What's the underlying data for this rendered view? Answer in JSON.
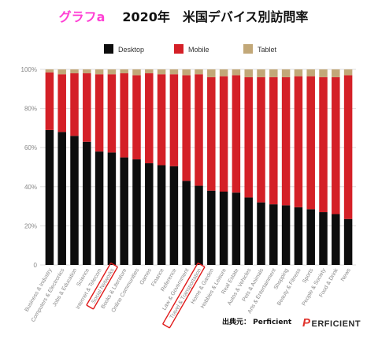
{
  "title": {
    "tag": "グラフa",
    "text": "2020年　米国デバイス別訪問率"
  },
  "source": "出典元： Perficient",
  "logo": {
    "mark": "P",
    "text": "ERFICIENT"
  },
  "colors": {
    "desktop": "#0d0d0d",
    "mobile": "#d42027",
    "tablet": "#c2a878",
    "highlight": "#e01919",
    "grid": "#dddddd",
    "axis_text": "#888888"
  },
  "chart_data": {
    "type": "bar",
    "stacked": true,
    "title": "2020年　米国デバイス別訪問率",
    "xlabel": "",
    "ylabel": "",
    "ylim": [
      0,
      100
    ],
    "yticks": [
      "0",
      "20%",
      "40%",
      "60%",
      "80%",
      "100%"
    ],
    "grid": true,
    "legend_position": "top",
    "categories": [
      "Business & Industry",
      "Computers & Electronics",
      "Jobs & Education",
      "Science",
      "Internet & Telecom",
      "Social Networks",
      "Books & Literature",
      "Online Communities",
      "Games",
      "Finance",
      "Reference",
      "Law & Government",
      "Travel & Transportation",
      "Home & Garden",
      "Hobbies & Leisure",
      "Real Estate",
      "Autos & Vehicles",
      "Pets & Animals",
      "Arts & Entertainment",
      "Shopping",
      "Beauty & Fitness",
      "Sports",
      "People & Society",
      "Food & Drink",
      "News"
    ],
    "series": [
      {
        "name": "Desktop",
        "values": [
          69,
          68,
          66,
          63,
          58,
          57.5,
          55,
          54,
          52,
          51,
          50.5,
          43,
          40.5,
          38,
          37.5,
          37,
          34.5,
          32,
          31,
          30.5,
          29.5,
          28.5,
          27,
          26,
          23.5
        ]
      },
      {
        "name": "Mobile",
        "values": [
          29.5,
          29.5,
          32,
          35,
          39.5,
          40,
          43,
          43,
          46,
          46.5,
          47,
          54,
          57,
          58,
          59,
          60,
          61.5,
          64,
          65,
          65.5,
          67,
          68,
          69,
          70,
          73.5
        ]
      },
      {
        "name": "Tablet",
        "values": [
          1.5,
          2.5,
          2,
          2,
          2.5,
          2.5,
          2,
          3,
          2,
          2.5,
          2.5,
          3,
          2.5,
          4,
          3.5,
          3,
          4,
          4,
          4,
          4,
          3.5,
          3.5,
          4,
          4,
          3
        ]
      }
    ],
    "highlighted_categories": [
      "Social Networks",
      "Travel & Transportation"
    ]
  }
}
